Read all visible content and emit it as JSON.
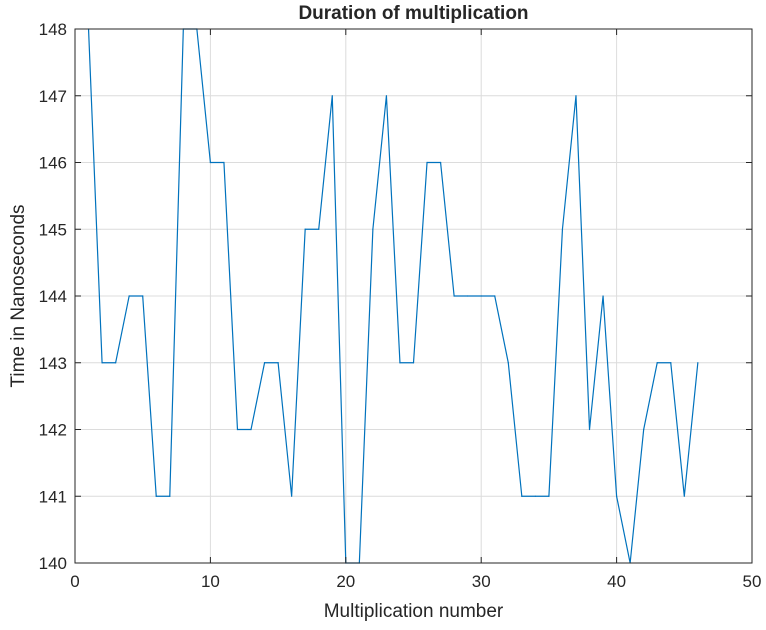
{
  "chart_data": {
    "type": "line",
    "title": "Duration of multiplication",
    "xlabel": "Multiplication number",
    "ylabel": "Time in Nanoseconds",
    "xlim": [
      0,
      50
    ],
    "ylim": [
      140,
      148
    ],
    "xticks": [
      0,
      10,
      20,
      30,
      40,
      50
    ],
    "yticks": [
      140,
      141,
      142,
      143,
      144,
      145,
      146,
      147,
      148
    ],
    "grid": true,
    "series": [
      {
        "color": "#0072BD",
        "x": [
          1,
          2,
          3,
          4,
          5,
          6,
          7,
          8,
          9,
          10,
          11,
          12,
          13,
          14,
          15,
          16,
          17,
          18,
          19,
          20,
          21,
          22,
          23,
          24,
          25,
          26,
          27,
          28,
          29,
          30,
          31,
          32,
          33,
          34,
          35,
          36,
          37,
          38,
          39,
          40,
          41,
          42,
          43,
          44,
          45,
          46
        ],
        "y": [
          148,
          143,
          143,
          144,
          144,
          141,
          141,
          148,
          148,
          146,
          146,
          142,
          142,
          143,
          143,
          141,
          145,
          145,
          147,
          140,
          140,
          145,
          147,
          143,
          143,
          146,
          146,
          144,
          144,
          144,
          144,
          143,
          141,
          141,
          141,
          145,
          147,
          142,
          144,
          141,
          140,
          142,
          143,
          143,
          141,
          143
        ]
      }
    ]
  }
}
